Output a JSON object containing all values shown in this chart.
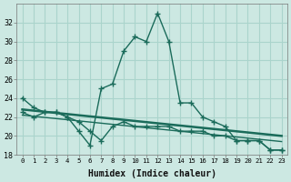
{
  "xlabel": "Humidex (Indice chaleur)",
  "bg_color": "#cce8e2",
  "grid_color": "#aad4cc",
  "line_color": "#1a6b5a",
  "x_values": [
    0,
    1,
    2,
    3,
    4,
    5,
    6,
    7,
    8,
    9,
    10,
    11,
    12,
    13,
    14,
    15,
    16,
    17,
    18,
    19,
    20,
    21,
    22,
    23
  ],
  "curve_upper": [
    24.0,
    23.0,
    22.5,
    22.5,
    22.0,
    20.5,
    19.0,
    25.0,
    25.5,
    29.0,
    30.5,
    30.0,
    33.0,
    30.0,
    23.5,
    23.5,
    22.0,
    21.5,
    21.0,
    19.5,
    19.5,
    19.5,
    18.5,
    18.5
  ],
  "curve_lower": [
    22.5,
    22.0,
    22.5,
    22.5,
    22.0,
    21.5,
    20.5,
    19.5,
    21.0,
    21.5,
    21.0,
    21.0,
    21.0,
    21.0,
    20.5,
    20.5,
    20.5,
    20.0,
    20.0,
    19.5,
    19.5,
    19.5,
    18.5,
    18.5
  ],
  "trend1_x": [
    0,
    23
  ],
  "trend1_y": [
    22.8,
    20.0
  ],
  "trend2_x": [
    0,
    23
  ],
  "trend2_y": [
    22.2,
    19.4
  ],
  "ylim": [
    18,
    34
  ],
  "yticks": [
    18,
    20,
    22,
    24,
    26,
    28,
    30,
    32
  ],
  "xlim": [
    -0.5,
    23.5
  ],
  "xticks": [
    0,
    1,
    2,
    3,
    4,
    5,
    6,
    7,
    8,
    9,
    10,
    11,
    12,
    13,
    14,
    15,
    16,
    17,
    18,
    19,
    20,
    21,
    22,
    23
  ]
}
